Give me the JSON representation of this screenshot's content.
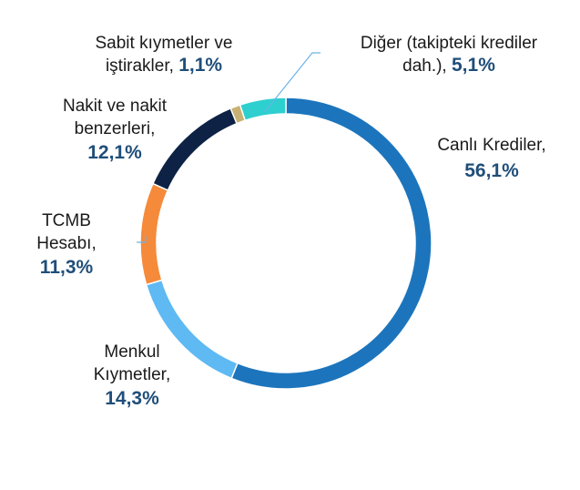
{
  "chart_data": {
    "type": "pie",
    "title": "",
    "slices": [
      {
        "label": "Canlı Krediler",
        "label_lines": [
          "Canlı Krediler,"
        ],
        "value_text": "56,1%",
        "value": 56.1,
        "color": "#1c75bc"
      },
      {
        "label": "Menkul Kıymetler",
        "label_lines": [
          "Menkul",
          "Kıymetler,"
        ],
        "value_text": "14,3%",
        "value": 14.3,
        "color": "#5fb9f2"
      },
      {
        "label": "TCMB Hesabı",
        "label_lines": [
          "TCMB",
          "Hesabı,"
        ],
        "value_text": "11,3%",
        "value": 11.3,
        "color": "#f58a3a"
      },
      {
        "label": "Nakit ve nakit benzerleri",
        "label_lines": [
          "Nakit ve nakit",
          "benzerleri,"
        ],
        "value_text": "12,1%",
        "value": 12.1,
        "color": "#0d2244"
      },
      {
        "label": "Sabit kıymetler ve iştirakler",
        "label_lines": [
          "Sabit kıymetler ve",
          "iştirakler,"
        ],
        "value_text": "1,1%",
        "value": 1.1,
        "color": "#c8b273"
      },
      {
        "label": "Diğer (takipteki krediler dah.)",
        "label_lines": [
          "Diğer (takipteki krediler",
          "dah.),"
        ],
        "value_text": "5,1%",
        "value": 5.1,
        "color": "#2ecfcf"
      }
    ],
    "donut": true,
    "value_color": "#1f4e79"
  }
}
